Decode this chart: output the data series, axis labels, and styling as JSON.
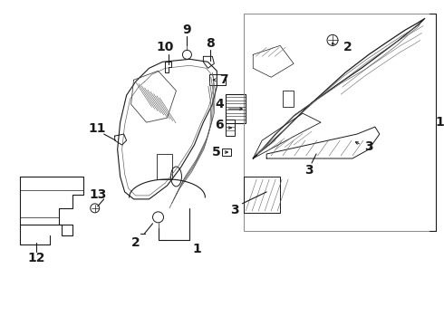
{
  "bg_color": "#ffffff",
  "line_color": "#1a1a1a",
  "fig_width": 4.9,
  "fig_height": 3.6,
  "dpi": 100,
  "label_fontsize": 10,
  "label_fontweight": "bold",
  "gray_line": "#555555",
  "light_line": "#888888"
}
